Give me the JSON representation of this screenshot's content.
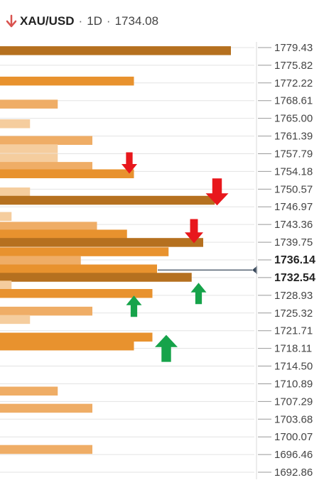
{
  "header": {
    "symbol": "XAU/USD",
    "separator": "·",
    "timeframe": "1D",
    "price": "1734.08",
    "direction_icon": "down-arrow-icon",
    "direction_color": "#d9534f"
  },
  "chart_data": {
    "type": "bar",
    "orientation": "horizontal",
    "price_axis": {
      "ticks": [
        "1779.43",
        "1775.82",
        "1772.22",
        "1768.61",
        "1765.00",
        "1761.39",
        "1757.79",
        "1754.18",
        "1750.57",
        "1746.97",
        "1743.36",
        "1739.75",
        "1736.14",
        "1732.54",
        "1728.93",
        "1725.32",
        "1721.71",
        "1718.11",
        "1714.50",
        "1710.89",
        "1707.29",
        "1703.68",
        "1700.07",
        "1696.46",
        "1692.86"
      ],
      "highlighted": [
        "1736.14",
        "1732.54"
      ],
      "range": [
        1692.86,
        1779.43
      ]
    },
    "current_price": 1734.08,
    "confluence_max": 10,
    "levels": [
      {
        "price": 1778.8,
        "strength": 10,
        "shade": "dark"
      },
      {
        "price": 1772.6,
        "strength": 5.8,
        "shade": "medium"
      },
      {
        "price": 1767.9,
        "strength": 2.5,
        "shade": "light"
      },
      {
        "price": 1763.9,
        "strength": 1.3,
        "shade": "pale"
      },
      {
        "price": 1760.5,
        "strength": 4,
        "shade": "light"
      },
      {
        "price": 1758.8,
        "strength": 2.5,
        "shade": "pale"
      },
      {
        "price": 1756.9,
        "strength": 2.5,
        "shade": "pale"
      },
      {
        "price": 1755.2,
        "strength": 4,
        "shade": "light"
      },
      {
        "price": 1753.7,
        "strength": 5.8,
        "shade": "medium"
      },
      {
        "price": 1750.0,
        "strength": 1.3,
        "shade": "pale"
      },
      {
        "price": 1748.3,
        "strength": 9.3,
        "shade": "dark"
      },
      {
        "price": 1745.0,
        "strength": 0.5,
        "shade": "pale"
      },
      {
        "price": 1743.0,
        "strength": 4.2,
        "shade": "light"
      },
      {
        "price": 1741.4,
        "strength": 5.5,
        "shade": "medium"
      },
      {
        "price": 1739.7,
        "strength": 8.8,
        "shade": "dark"
      },
      {
        "price": 1737.8,
        "strength": 7.3,
        "shade": "medium"
      },
      {
        "price": 1736.0,
        "strength": 3.5,
        "shade": "light"
      },
      {
        "price": 1734.3,
        "strength": 6.8,
        "shade": "medium"
      },
      {
        "price": 1732.6,
        "strength": 8.3,
        "shade": "dark"
      },
      {
        "price": 1731.0,
        "strength": 0.5,
        "shade": "pale"
      },
      {
        "price": 1729.3,
        "strength": 6.6,
        "shade": "medium"
      },
      {
        "price": 1725.7,
        "strength": 4,
        "shade": "light"
      },
      {
        "price": 1724.0,
        "strength": 1.3,
        "shade": "pale"
      },
      {
        "price": 1720.4,
        "strength": 6.6,
        "shade": "medium"
      },
      {
        "price": 1718.6,
        "strength": 5.8,
        "shade": "medium"
      },
      {
        "price": 1709.4,
        "strength": 2.5,
        "shade": "light"
      },
      {
        "price": 1705.9,
        "strength": 4,
        "shade": "light"
      },
      {
        "price": 1697.5,
        "strength": 4,
        "shade": "light"
      }
    ],
    "markers": [
      {
        "type": "resistance",
        "price": 1755.9,
        "strength": 5.6,
        "size": "small",
        "icon": "down-arrow-icon"
      },
      {
        "type": "resistance",
        "price": 1750.0,
        "strength": 9.4,
        "size": "large",
        "icon": "down-arrow-icon"
      },
      {
        "type": "resistance",
        "price": 1742.0,
        "strength": 8.4,
        "size": "medium",
        "icon": "down-arrow-icon"
      },
      {
        "type": "support",
        "price": 1729.3,
        "strength": 8.6,
        "size": "small",
        "icon": "up-arrow-icon"
      },
      {
        "type": "support",
        "price": 1726.7,
        "strength": 5.8,
        "size": "small",
        "icon": "up-arrow-icon"
      },
      {
        "type": "support",
        "price": 1718.1,
        "strength": 7.2,
        "size": "large",
        "icon": "up-arrow-icon"
      }
    ],
    "colors": {
      "dark": "#b5701f",
      "medium": "#e8922e",
      "light": "#efad66",
      "pale": "#f5cd9e",
      "resistance_arrow": "#e8171c",
      "support_arrow": "#16a34a",
      "grid": "#e3e3e3",
      "price_line": "#37475a"
    },
    "grid": true
  }
}
